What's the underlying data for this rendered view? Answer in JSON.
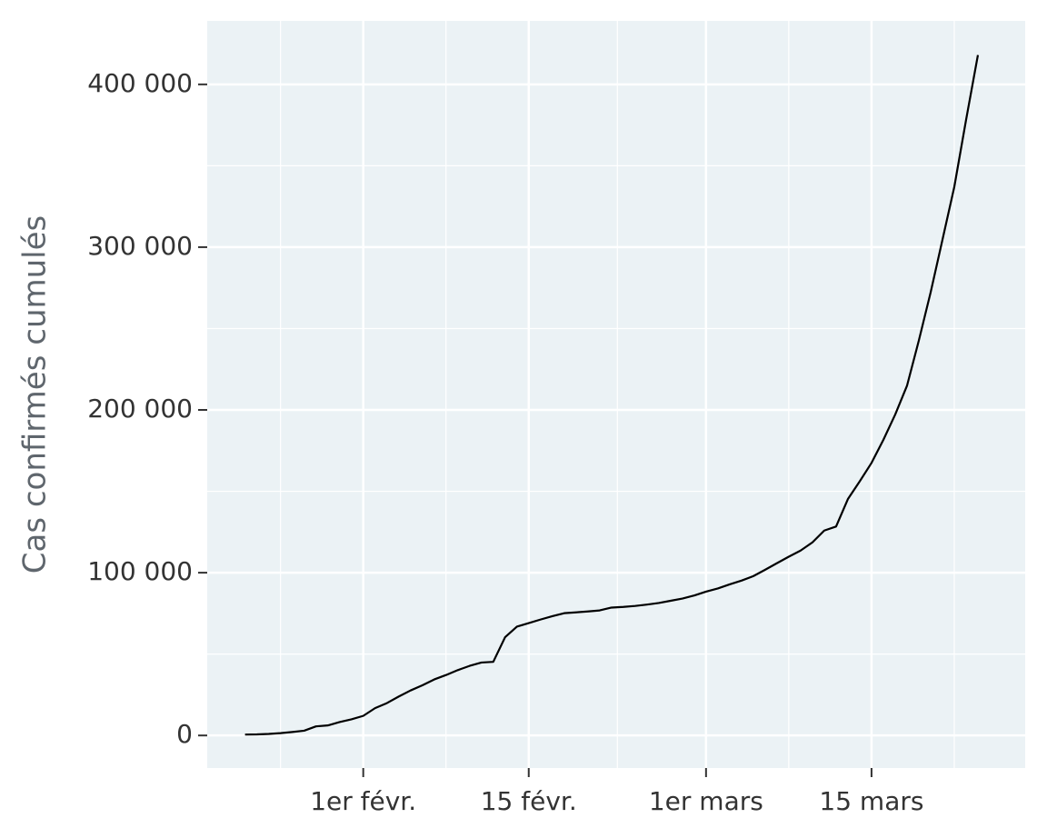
{
  "chart_data": {
    "type": "line",
    "y_label": "Cas confirmés cumulés",
    "categories": [
      null,
      null,
      null,
      null,
      null,
      null,
      null,
      null,
      null,
      null,
      "1er févr.",
      null,
      null,
      null,
      null,
      null,
      null,
      null,
      null,
      null,
      null,
      null,
      null,
      null,
      "15 févr.",
      null,
      null,
      null,
      null,
      null,
      null,
      null,
      null,
      null,
      null,
      null,
      null,
      null,
      null,
      "1er mars",
      null,
      null,
      null,
      null,
      null,
      null,
      null,
      null,
      null,
      null,
      null,
      null,
      null,
      "15 mars",
      null,
      null,
      null,
      null,
      null,
      null,
      null,
      null,
      null
    ],
    "values": [
      555,
      654,
      941,
      1434,
      2118,
      2927,
      5578,
      6166,
      8234,
      9927,
      12038,
      16787,
      19881,
      23892,
      27635,
      30794,
      34391,
      37120,
      40150,
      42762,
      44802,
      45221,
      60368,
      66885,
      69030,
      71224,
      73258,
      75136,
      75639,
      76197,
      76819,
      78572,
      78958,
      79561,
      80406,
      81388,
      82746,
      84112,
      86011,
      88369,
      90306,
      92840,
      95120,
      97886,
      101801,
      105847,
      109821,
      113590,
      118620,
      125875,
      128352,
      145205,
      156101,
      167454,
      181574,
      197102,
      214821,
      242570,
      272208,
      304507,
      336953,
      378235,
      418045
    ],
    "color": "#000000",
    "ylim": [
      -20000,
      439000
    ],
    "yticks": [
      0,
      {
        "value": 100000,
        "label": "100 000"
      },
      {
        "value": 200000,
        "label": "200 000"
      },
      {
        "value": 300000,
        "label": "300 000"
      },
      {
        "value": 400000,
        "label": "400 000"
      }
    ],
    "grid": true
  }
}
